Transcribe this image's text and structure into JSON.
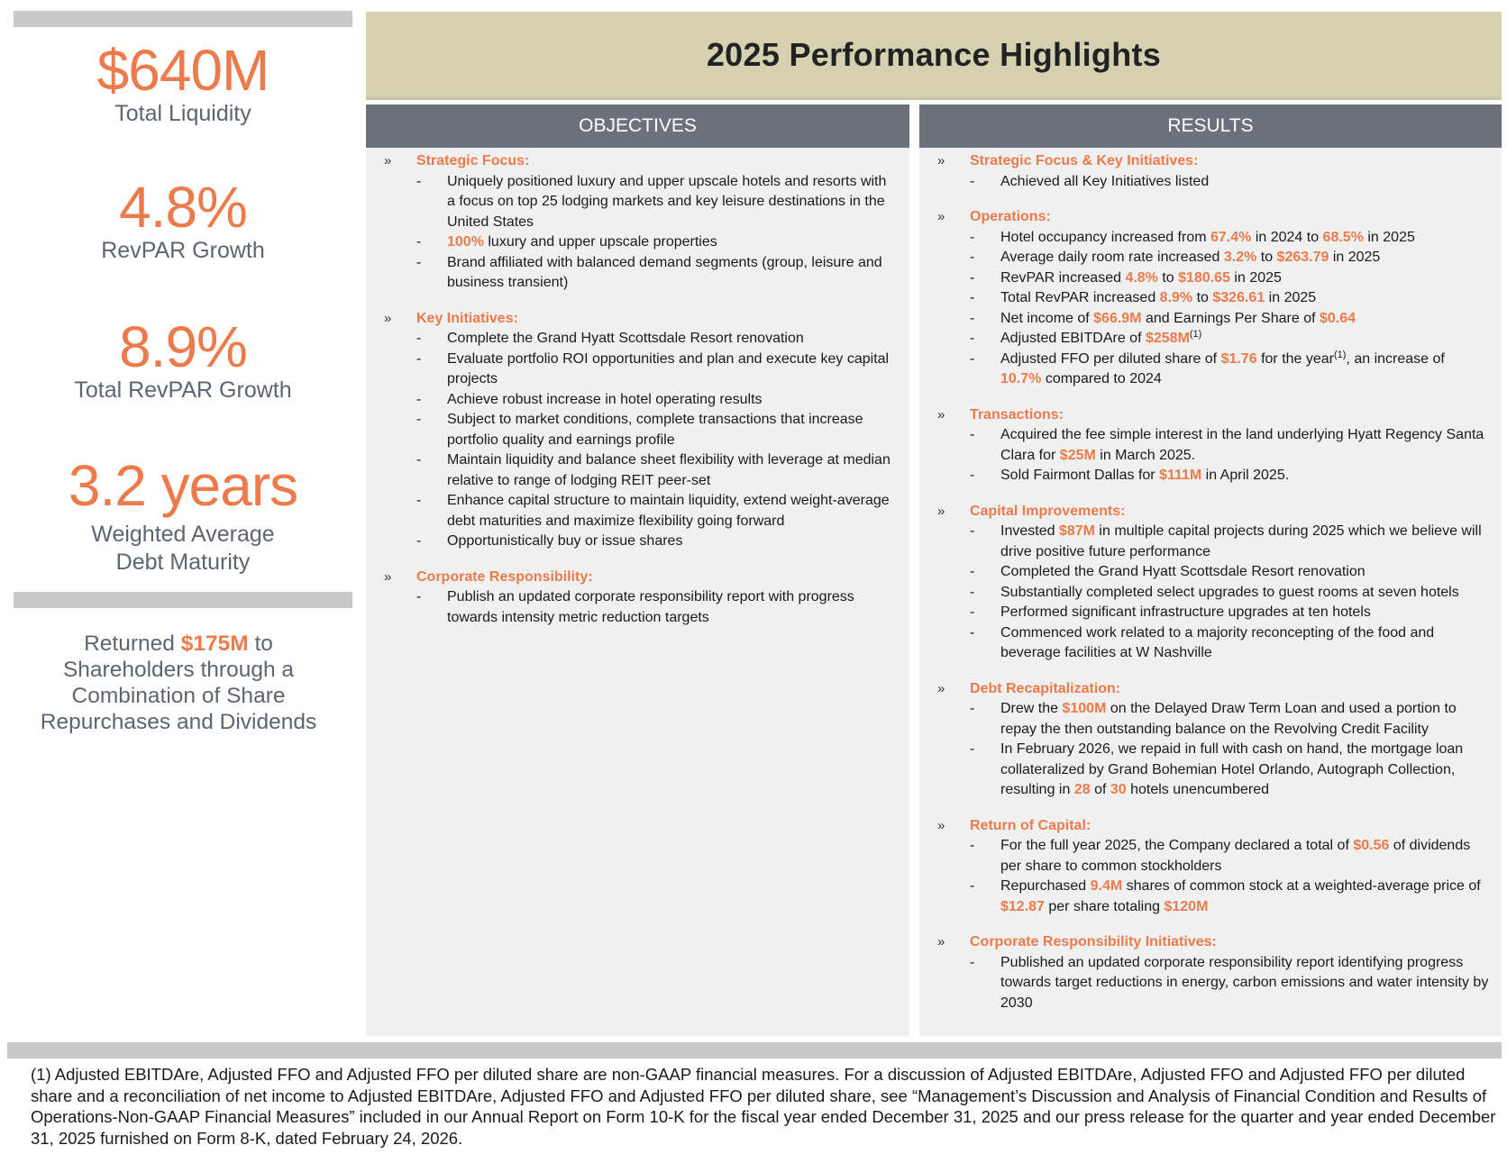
{
  "left_stats": [
    {
      "value": "$640M",
      "label": "Total Liquidity"
    },
    {
      "value": "4.8%",
      "label": "RevPAR Growth"
    },
    {
      "value": "8.9%",
      "label": "Total RevPAR Growth"
    },
    {
      "value": "3.2 years",
      "label_line1": "Weighted Average",
      "label_line2": "Debt Maturity"
    }
  ],
  "returned": {
    "before": "Returned ",
    "amount": "$175M",
    "after": " to Shareholders through a Combination of Share Repurchases and Dividends"
  },
  "title": "2025 Performance Highlights",
  "objectives": {
    "header": "OBJECTIVES",
    "strategic": {
      "title": "Strategic Focus:",
      "b1": "Uniquely positioned luxury and upper upscale hotels and resorts with a focus on top 25 lodging markets and key leisure destinations in the United States",
      "b2_hl": "100%",
      "b2": " luxury and upper upscale properties",
      "b3": "Brand affiliated with balanced demand segments (group, leisure and business transient)"
    },
    "key": {
      "title": "Key Initiatives:",
      "b1": "Complete the Grand Hyatt Scottsdale Resort renovation",
      "b2": "Evaluate portfolio ROI opportunities and plan and execute key capital projects",
      "b3": "Achieve robust increase in hotel operating results",
      "b4": "Subject to market conditions, complete transactions that increase portfolio quality and earnings profile",
      "b5": "Maintain liquidity and balance sheet flexibility with leverage at median relative to range of lodging REIT peer-set",
      "b6": "Enhance capital structure to maintain liquidity, extend weight-average debt maturities and maximize flexibility going forward",
      "b7": "Opportunistically buy or issue shares"
    },
    "corporate": {
      "title": "Corporate Responsibility:",
      "b1": "Publish an updated corporate responsibility report with progress towards intensity metric reduction targets"
    }
  },
  "results": {
    "header": "RESULTS",
    "strategic": {
      "title": "Strategic Focus & Key Initiatives:",
      "b1": "Achieved all Key Initiatives listed"
    },
    "operations": {
      "title": "Operations:",
      "occ": {
        "t1": "Hotel occupancy increased from ",
        "v1": "67.4%",
        "t2": " in 2024 to ",
        "v2": "68.5%",
        "t3": " in 2025"
      },
      "adr": {
        "t1": "Average daily room rate increased ",
        "v1": "3.2%",
        "t2": " to ",
        "v2": "$263.79",
        "t3": " in 2025"
      },
      "revpar": {
        "t1": "RevPAR increased ",
        "v1": "4.8%",
        "t2": " to ",
        "v2": "$180.65",
        "t3": " in 2025"
      },
      "total_revpar": {
        "t1": "Total RevPAR increased ",
        "v1": "8.9%",
        "t2": " to ",
        "v2": "$326.61",
        "t3": " in 2025"
      },
      "net_income": {
        "t1": "Net income of ",
        "v1": "$66.9M",
        "t2": " and Earnings Per Share of ",
        "v2": "$0.64"
      },
      "ebitda": {
        "t1": "Adjusted EBITDAre of ",
        "v1": "$258M",
        "sup": "(1)"
      },
      "ffo": {
        "t1": "Adjusted FFO per diluted share of ",
        "v1": "$1.76",
        "t2": " for the year",
        "sup": "(1)",
        "t3": ", an increase of ",
        "v2": "10.7%",
        "t4": " compared to 2024"
      }
    },
    "transactions": {
      "title": "Transactions:",
      "b1": {
        "t1": "Acquired the fee simple interest in the land underlying Hyatt Regency Santa Clara for ",
        "v1": "$25M",
        "t2": " in March 2025."
      },
      "b2": {
        "t1": "Sold Fairmont Dallas for ",
        "v1": "$111M",
        "t2": " in April 2025."
      }
    },
    "capital": {
      "title": "Capital Improvements:",
      "b1": {
        "t1": "Invested ",
        "v1": "$87M",
        "t2": " in multiple capital projects during 2025 which we believe will drive positive future performance"
      },
      "b2": "Completed the Grand Hyatt Scottsdale Resort renovation",
      "b3": "Substantially completed select upgrades to guest rooms at seven hotels",
      "b4": "Performed significant infrastructure upgrades at ten hotels",
      "b5": "Commenced work related to a majority reconcepting of the food and beverage facilities at W Nashville"
    },
    "debt": {
      "title": "Debt Recapitalization:",
      "b1": {
        "t1": "Drew the ",
        "v1": "$100M",
        "t2": " on the Delayed Draw Term Loan and used a portion to repay the then outstanding balance on the Revolving Credit Facility"
      },
      "b2": {
        "t1": "In February 2026, we repaid in full with cash on hand, the mortgage loan collateralized by Grand Bohemian Hotel Orlando, Autograph Collection, resulting in ",
        "v1": "28",
        "t2": " of ",
        "v2": "30",
        "t3": " hotels unencumbered"
      }
    },
    "return": {
      "title": "Return of Capital:",
      "b1": {
        "t1": "For the full year 2025, the Company declared a total of ",
        "v1": "$0.56",
        "t2": " of dividends per share to common stockholders"
      },
      "b2": {
        "t1": "Repurchased ",
        "v1": "9.4M",
        "t2": " shares of common stock at a weighted-average price of ",
        "v2": "$12.87",
        "t3": " per share totaling ",
        "v3": "$120M"
      }
    },
    "corporate": {
      "title": "Corporate Responsibility Initiatives:",
      "b1": "Published an updated corporate responsibility report identifying progress towards target reductions in energy, carbon emissions and water intensity by 2030"
    }
  },
  "bullets": {
    "chevron": "»",
    "dash": "-"
  },
  "footnote": "(1) Adjusted EBITDAre, Adjusted FFO and Adjusted FFO per diluted share are non-GAAP financial measures. For a discussion of Adjusted EBITDAre, Adjusted FFO and Adjusted FFO per diluted share and a reconciliation of net income to Adjusted EBITDAre, Adjusted FFO and Adjusted FFO per diluted share, see “Management’s Discussion and Analysis of Financial Condition and Results of Operations-Non-GAAP Financial Measures” included in our Annual Report on Form 10-K for the fiscal year ended December 31, 2025 and our press release for the quarter and year ended December 31, 2025 furnished on Form 8-K, dated February 24, 2026."
}
